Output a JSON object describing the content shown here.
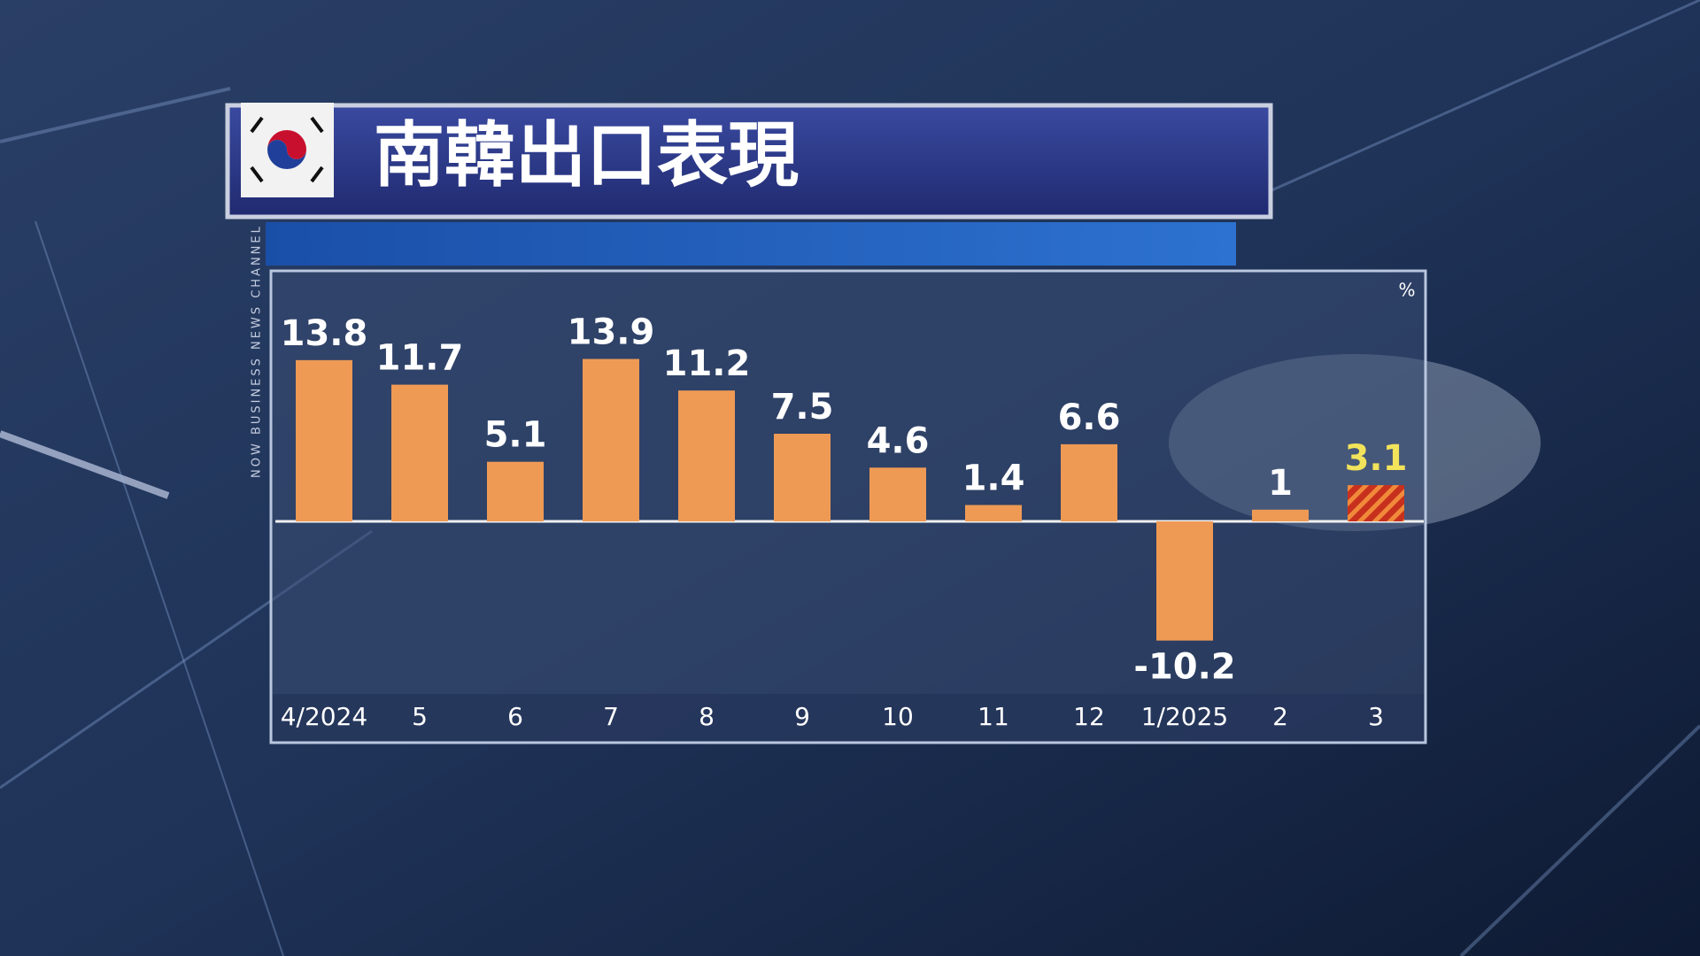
{
  "chart_data": {
    "type": "bar",
    "title": "南韓出口表現",
    "unit": "%",
    "channel": "NOW BUSINESS NEWS CHANNEL",
    "categories": [
      "4/2024",
      "5",
      "6",
      "7",
      "8",
      "9",
      "10",
      "11",
      "12",
      "1/2025",
      "2",
      "3"
    ],
    "values": [
      13.8,
      11.7,
      5.1,
      13.9,
      11.2,
      7.5,
      4.6,
      1.4,
      6.6,
      -10.2,
      1,
      3.1
    ],
    "color": "#ee9a55",
    "hatched_last": true,
    "last_label_color": "#f2e35a"
  }
}
